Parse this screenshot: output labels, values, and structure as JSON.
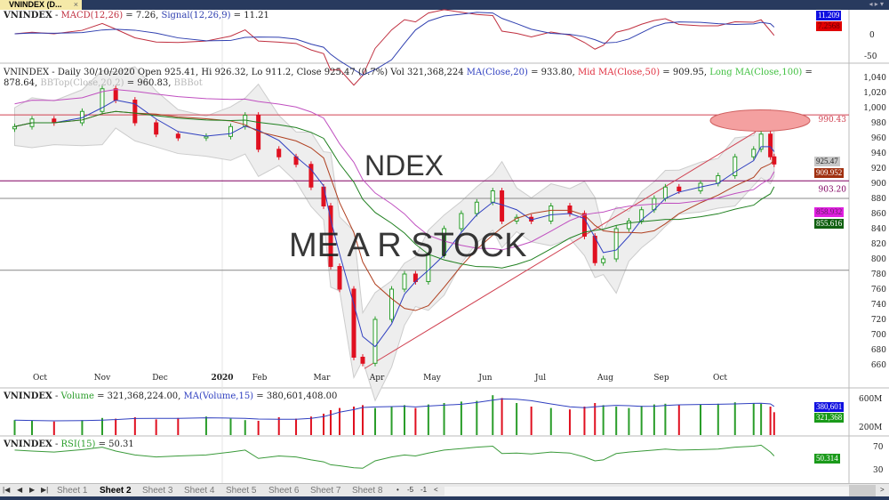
{
  "window": {
    "tab_title": "VNINDEX (D...",
    "close": "×"
  },
  "macd": {
    "symbol": "VNINDEX",
    "macd_label": "MACD(12,26)",
    "macd_value": "7.26",
    "signal_label": "Signal(12,26,9)",
    "signal_value": "11.21",
    "tag_signal": "11.209",
    "tag_macd": "7.2568",
    "ticks": [
      "0",
      "-50"
    ]
  },
  "header": {
    "text": "VNINDEX - Daily 30/10/2020 Open 925.41, Hi 926.32, Lo 911.2, Close 925.47 (0.7%) Vol 321,368,224",
    "ma20_label": "MA(Close,20)",
    "ma20_value": "= 933.80,",
    "ma50_label": "Mid MA(Close,50)",
    "ma50_value": "= 909.95,",
    "ma100_label": "Long MA(Close,100)",
    "ma100_value": "= 878.64,",
    "bbtop_label": "BBTop(Close,20,2)",
    "bbtop_value": "= 960.83,",
    "bbbot_label": "BBBot"
  },
  "watermark": {
    "line1": "NDEX",
    "line2": "ME   A R     STOCK"
  },
  "levels": [
    {
      "value": 990.43,
      "label": "990.43",
      "color": "#d04050"
    },
    {
      "value": 903.2,
      "label": "903.20",
      "color": "#800060"
    },
    {
      "value": 880,
      "label": "",
      "color": "#888"
    },
    {
      "value": 785,
      "label": "",
      "color": "#888"
    }
  ],
  "price_tags": {
    "close": "925.47",
    "ma50": "909.952",
    "ma100_bb": "858.932",
    "ma100": "855.616"
  },
  "colors": {
    "up": "#2a9d2a",
    "down": "#e01020",
    "ma20": "#3040c0",
    "ma50": "#b04020",
    "ma100": "#208020",
    "bb": "#c050c0",
    "macd": "#c03040",
    "signal": "#3040b0"
  },
  "chart_data": {
    "type": "candlestick",
    "ylim": [
      640,
      1050
    ],
    "yticks": [
      660,
      680,
      700,
      720,
      740,
      760,
      780,
      800,
      820,
      840,
      860,
      880,
      900,
      920,
      940,
      960,
      980,
      1000,
      1020,
      1040
    ],
    "ytick_labels": [
      "660",
      "680",
      "700",
      "720",
      "740",
      "760",
      "780",
      "800",
      "820",
      "840",
      "860",
      "880",
      "900",
      "920",
      "940",
      "960",
      "980",
      "1,000",
      "1,020",
      "1,040"
    ],
    "x_labels": [
      "Oct",
      "Nov",
      "Dec",
      "2020",
      "Feb",
      "Mar",
      "Apr",
      "May",
      "Jun",
      "Jul",
      "Aug",
      "Sep",
      "Oct"
    ],
    "points": [
      [
        "2019-09-12",
        975,
        210
      ],
      [
        "2019-09-25",
        985,
        200
      ],
      [
        "2019-10-08",
        980,
        190
      ],
      [
        "2019-10-22",
        995,
        210
      ],
      [
        "2019-11-01",
        1025,
        240
      ],
      [
        "2019-11-08",
        1010,
        230
      ],
      [
        "2019-11-18",
        980,
        250
      ],
      [
        "2019-11-29",
        965,
        220
      ],
      [
        "2019-12-10",
        960,
        240
      ],
      [
        "2019-12-24",
        962,
        260
      ],
      [
        "2020-01-08",
        975,
        230
      ],
      [
        "2020-01-20",
        990,
        210
      ],
      [
        "2020-01-31",
        945,
        200
      ],
      [
        "2020-02-10",
        935,
        250
      ],
      [
        "2020-02-18",
        925,
        230
      ],
      [
        "2020-02-25",
        895,
        260
      ],
      [
        "2020-03-02",
        870,
        300
      ],
      [
        "2020-03-06",
        790,
        350
      ],
      [
        "2020-03-11",
        760,
        380
      ],
      [
        "2020-03-19",
        670,
        400
      ],
      [
        "2020-03-24",
        662,
        420
      ],
      [
        "2020-03-31",
        720,
        380
      ],
      [
        "2020-04-09",
        760,
        400
      ],
      [
        "2020-04-16",
        780,
        420
      ],
      [
        "2020-04-22",
        770,
        380
      ],
      [
        "2020-04-29",
        805,
        430
      ],
      [
        "2020-05-08",
        840,
        450
      ],
      [
        "2020-05-18",
        860,
        470
      ],
      [
        "2020-05-27",
        875,
        480
      ],
      [
        "2020-06-05",
        890,
        560
      ],
      [
        "2020-06-10",
        850,
        520
      ],
      [
        "2020-06-18",
        855,
        450
      ],
      [
        "2020-06-26",
        850,
        400
      ],
      [
        "2020-07-06",
        870,
        380
      ],
      [
        "2020-07-15",
        860,
        360
      ],
      [
        "2020-07-22",
        830,
        400
      ],
      [
        "2020-07-27",
        795,
        450
      ],
      [
        "2020-07-31",
        800,
        420
      ],
      [
        "2020-08-07",
        840,
        400
      ],
      [
        "2020-08-14",
        850,
        380
      ],
      [
        "2020-08-21",
        865,
        410
      ],
      [
        "2020-08-28",
        880,
        430
      ],
      [
        "2020-09-03",
        895,
        440
      ],
      [
        "2020-09-10",
        890,
        420
      ],
      [
        "2020-09-21",
        900,
        430
      ],
      [
        "2020-09-30",
        910,
        440
      ],
      [
        "2020-10-09",
        935,
        460
      ],
      [
        "2020-10-19",
        945,
        450
      ],
      [
        "2020-10-23",
        965,
        440
      ],
      [
        "2020-10-28",
        935,
        400
      ],
      [
        "2020-10-30",
        925.47,
        321
      ]
    ],
    "volume": {
      "label": "Volume",
      "value": "= 321,368,224.00,",
      "ma_label": "MA(Volume,15)",
      "ma_value": "= 380,601,408.00",
      "tag_ma": "380,601",
      "tag_vol": "321,368",
      "ticks": [
        "600M",
        "200M"
      ]
    },
    "rsi": {
      "label": "RSI(15)",
      "value": "= 50.31",
      "tag": "50.314",
      "ticks": [
        "70",
        "30"
      ],
      "values": [
        62,
        60,
        58,
        63,
        68,
        60,
        52,
        48,
        50,
        52,
        58,
        62,
        45,
        50,
        48,
        42,
        38,
        32,
        30,
        26,
        25,
        40,
        48,
        52,
        50,
        56,
        62,
        65,
        68,
        70,
        55,
        56,
        54,
        58,
        56,
        48,
        40,
        42,
        55,
        58,
        60,
        62,
        64,
        62,
        63,
        64,
        68,
        70,
        72,
        58,
        50
      ]
    }
  },
  "sheets": {
    "tabs": [
      "Sheet 1",
      "Sheet 2",
      "Sheet 3",
      "Sheet 4",
      "Sheet 5",
      "Sheet 6",
      "Sheet 7",
      "Sheet 8"
    ],
    "active": 1,
    "nav": [
      "|◀",
      "◀",
      "▶",
      "▶|"
    ],
    "extra": [
      "•",
      "-5",
      "-1",
      "<"
    ],
    "scroll_right": ">"
  }
}
